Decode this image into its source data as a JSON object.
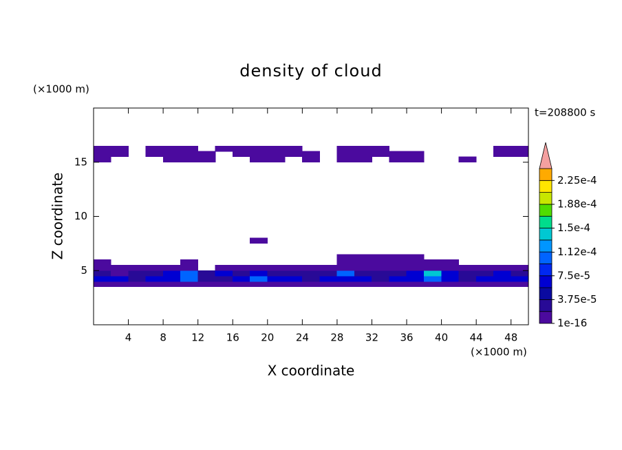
{
  "chart_data": {
    "type": "contour",
    "title": "density of cloud",
    "xlabel": "X coordinate",
    "ylabel": "Z coordinate",
    "xunit": "(×1000 m)",
    "yunit": "(×1000 m)",
    "annotation": "t=208800 s",
    "xlim": [
      0,
      50
    ],
    "ylim": [
      0,
      20
    ],
    "xticks": [
      4,
      8,
      12,
      16,
      20,
      24,
      28,
      32,
      36,
      40,
      44,
      48
    ],
    "yticks": [
      5,
      10,
      15
    ],
    "x": [
      1,
      3,
      5,
      7,
      9,
      11,
      13,
      15,
      17,
      19,
      21,
      23,
      25,
      27,
      29,
      31,
      33,
      35,
      37,
      39,
      41,
      43,
      45,
      47,
      49
    ],
    "y": [
      3.75,
      4.25,
      4.75,
      5.25,
      5.75,
      6.25,
      7.75,
      15.25,
      15.75,
      16.25
    ],
    "z": [
      [
        1e-05,
        1e-05,
        1e-05,
        1e-05,
        1e-05,
        1e-05,
        1e-05,
        1e-05,
        1e-05,
        1e-05,
        1e-05,
        1e-05,
        1e-05,
        1e-05,
        1e-05,
        1e-05,
        1e-05,
        1e-05,
        1e-05,
        1e-05,
        1e-05,
        1e-05,
        1e-05,
        1e-05,
        1e-05
      ],
      [
        6e-05,
        6e-05,
        3e-05,
        6e-05,
        6e-05,
        0.0001,
        3e-05,
        3e-05,
        6e-05,
        0.0001,
        6e-05,
        6e-05,
        3e-05,
        6e-05,
        6e-05,
        6e-05,
        3e-05,
        6e-05,
        6e-05,
        0.0001,
        6e-05,
        3e-05,
        6e-05,
        6e-05,
        6e-05
      ],
      [
        3e-05,
        1e-05,
        3e-05,
        3e-05,
        6e-05,
        0.0001,
        3e-05,
        6e-05,
        3e-05,
        6e-05,
        3e-05,
        3e-05,
        3e-05,
        3e-05,
        0.0001,
        3e-05,
        3e-05,
        3e-05,
        6e-05,
        0.00014,
        6e-05,
        3e-05,
        3e-05,
        6e-05,
        3e-05
      ],
      [
        1e-05,
        1e-05,
        1e-05,
        1e-05,
        1e-05,
        1e-05,
        null,
        1e-05,
        1e-05,
        1e-05,
        1e-05,
        1e-05,
        1e-05,
        1e-05,
        1e-05,
        1e-05,
        1e-05,
        1e-05,
        1e-05,
        1e-05,
        1e-05,
        1e-05,
        1e-05,
        1e-05,
        1e-05
      ],
      [
        1e-05,
        null,
        null,
        null,
        null,
        1e-05,
        null,
        null,
        null,
        null,
        null,
        null,
        null,
        null,
        1e-05,
        1e-05,
        1e-05,
        1e-05,
        1e-05,
        1e-05,
        1e-05,
        null,
        null,
        null,
        null
      ],
      [
        null,
        null,
        null,
        null,
        null,
        null,
        null,
        null,
        null,
        null,
        null,
        null,
        null,
        null,
        1e-05,
        1e-05,
        1e-05,
        1e-05,
        1e-05,
        null,
        null,
        null,
        null,
        null,
        null
      ],
      [
        null,
        null,
        null,
        null,
        null,
        null,
        null,
        null,
        null,
        1e-05,
        null,
        null,
        null,
        null,
        null,
        null,
        null,
        null,
        null,
        null,
        null,
        null,
        null,
        null,
        null
      ],
      [
        1e-05,
        null,
        null,
        null,
        1e-05,
        1e-05,
        1e-05,
        null,
        null,
        1e-05,
        1e-05,
        null,
        1e-05,
        null,
        1e-05,
        1e-05,
        null,
        1e-05,
        1e-05,
        null,
        null,
        1e-05,
        null,
        null,
        null
      ],
      [
        1e-05,
        1e-05,
        null,
        1e-05,
        1e-05,
        1e-05,
        1e-05,
        null,
        1e-05,
        1e-05,
        1e-05,
        1e-05,
        1e-05,
        null,
        1e-05,
        1e-05,
        1e-05,
        1e-05,
        1e-05,
        null,
        null,
        null,
        null,
        1e-05,
        1e-05
      ],
      [
        1e-05,
        1e-05,
        null,
        1e-05,
        1e-05,
        1e-05,
        null,
        1e-05,
        1e-05,
        1e-05,
        1e-05,
        1e-05,
        null,
        null,
        1e-05,
        1e-05,
        1e-05,
        null,
        null,
        null,
        null,
        null,
        null,
        1e-05,
        1e-05
      ]
    ],
    "levels": [
      1e-16,
      1.875e-05,
      3.75e-05,
      5.625e-05,
      7.5e-05,
      9.375e-05,
      0.0001125,
      0.00013125,
      0.00015,
      0.00016875,
      0.0001875,
      0.00020625,
      0.000225,
      0.00024375
    ],
    "colors": [
      "#4b0a9e",
      "#280a96",
      "#0a0aa0",
      "#0000d2",
      "#0028f0",
      "#0064ff",
      "#0096ff",
      "#00c8d2",
      "#00dc8c",
      "#50dc00",
      "#c8e600",
      "#ffe600",
      "#ffaa00",
      "#ff6400",
      "#f4a0a0"
    ],
    "colorbar_ticks": [
      {
        "value": 1e-16,
        "label": "1e-16"
      },
      {
        "value": 3.75e-05,
        "label": "3.75e-5"
      },
      {
        "value": 7.5e-05,
        "label": "7.5e-5"
      },
      {
        "value": 0.000112,
        "label": "1.12e-4"
      },
      {
        "value": 0.00015,
        "label": "1.5e-4"
      },
      {
        "value": 0.0001875,
        "label": "1.88e-4"
      },
      {
        "value": 0.000225,
        "label": "2.25e-4"
      }
    ]
  }
}
